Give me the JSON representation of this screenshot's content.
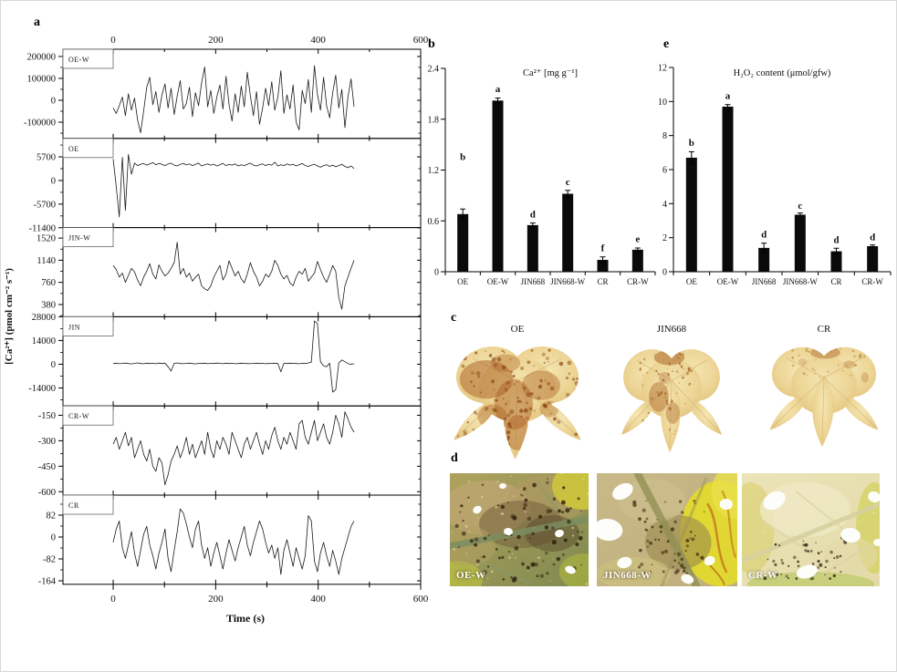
{
  "panels": {
    "a": {
      "letter": "a"
    },
    "b": {
      "letter": "b"
    },
    "c": {
      "letter": "c",
      "items": [
        {
          "name": "OE",
          "dots": {
            "count": 130,
            "seed": 11,
            "x": [
              18,
              185
            ],
            "y": [
              18,
              150
            ],
            "r": [
              1,
              3.2
            ],
            "color": "#8a4614",
            "opacity": [
              0.35,
              0.75
            ]
          },
          "blotches": [
            [
              58,
              58,
              36,
              26,
              0.5
            ],
            [
              95,
              92,
              26,
              34,
              0.45
            ],
            [
              132,
              66,
              26,
              20,
              0.4
            ],
            [
              100,
              130,
              16,
              24,
              0.45
            ],
            [
              66,
              108,
              20,
              16,
              0.38
            ],
            [
              143,
              98,
              13,
              11,
              0.32
            ],
            [
              84,
              36,
              20,
              12,
              0.35
            ]
          ]
        },
        {
          "name": "JIN668",
          "dots": {
            "count": 65,
            "seed": 23,
            "x": [
              45,
              135
            ],
            "y": [
              20,
              140
            ],
            "r": [
              0.8,
              2.6
            ],
            "color": "#96510f",
            "opacity": [
              0.3,
              0.65
            ]
          },
          "blotches": [
            [
              96,
              26,
              26,
              11,
              0.5
            ],
            [
              78,
              84,
              17,
              22,
              0.42
            ],
            [
              102,
              108,
              12,
              16,
              0.38
            ],
            [
              88,
              56,
              10,
              9,
              0.3
            ],
            [
              120,
              128,
              8,
              10,
              0.3
            ]
          ]
        },
        {
          "name": "CR",
          "dots": {
            "count": 30,
            "seed": 5,
            "x": [
              40,
              170
            ],
            "y": [
              15,
              60
            ],
            "r": [
              0.8,
              2.2
            ],
            "color": "#9a5a16",
            "opacity": [
              0.25,
              0.55
            ]
          },
          "blotches": [
            [
              102,
              22,
              24,
              9,
              0.42
            ],
            [
              140,
              40,
              9,
              6,
              0.3
            ],
            [
              66,
              36,
              7,
              5,
              0.22
            ],
            [
              165,
              60,
              6,
              8,
              0.25
            ]
          ]
        }
      ]
    },
    "d": {
      "letter": "d",
      "items": [
        {
          "name": "OE-W",
          "holes": [
            [
              30,
              40,
              5,
              4
            ],
            [
              64,
              64,
              5,
              4
            ],
            [
              120,
              66,
              5,
              4
            ],
            [
              132,
              106,
              6,
              4
            ],
            [
              58,
              14,
              4,
              3
            ]
          ],
          "dots": {
            "count": 85,
            "seed": 3,
            "x": [
              6,
              146
            ],
            "y": [
              6,
              118
            ],
            "r": [
              0.8,
              2.6
            ],
            "color": "#33230f",
            "opacity": [
              0.5,
              0.9
            ]
          }
        },
        {
          "name": "JIN668-W",
          "holes": [
            [
              28,
              20,
              12,
              8
            ],
            [
              12,
              62,
              16,
              12
            ],
            [
              30,
              98,
              8,
              6
            ],
            [
              98,
              116,
              7,
              5
            ],
            [
              140,
              34,
              7,
              6
            ],
            [
              122,
              96,
              6,
              5
            ]
          ],
          "dots": {
            "count": 60,
            "seed": 7,
            "x": [
              40,
              120
            ],
            "y": [
              30,
              110
            ],
            "r": [
              0.7,
              2.2
            ],
            "color": "#4a3618",
            "opacity": [
              0.5,
              0.85
            ]
          }
        },
        {
          "name": "CR-W",
          "holes": [
            [
              36,
              30,
              13,
              9
            ],
            [
              120,
              68,
              11,
              8
            ],
            [
              72,
              108,
              12,
              7
            ],
            [
              146,
              26,
              7,
              6
            ],
            [
              150,
              76,
              5,
              4
            ]
          ],
          "dots": {
            "count": 48,
            "seed": 9,
            "x": [
              25,
              118
            ],
            "y": [
              70,
              118
            ],
            "r": [
              0.7,
              2.0
            ],
            "color": "#2e2a14",
            "opacity": [
              0.5,
              0.85
            ]
          }
        }
      ]
    },
    "e": {
      "letter": "e"
    }
  },
  "chart_data": [
    {
      "id": "a",
      "type": "line",
      "xlabel": "Time (s)",
      "ylabel": "[Ca²⁺] (pmol cm⁻² s⁻¹)",
      "x_ticks": [
        0,
        200,
        400,
        600
      ],
      "x_minor_ticks": [
        100,
        300,
        500
      ],
      "x_range": [
        -98,
        600
      ],
      "t_end": 470,
      "grid": false,
      "subplots": [
        {
          "label": "OE-W",
          "y_ticks": [
            200000,
            100000,
            0,
            -100000
          ],
          "y_range": [
            -174000,
            233000
          ],
          "values": [
            -35000,
            -60000,
            -25000,
            15000,
            -70000,
            30000,
            -45000,
            10000,
            -90000,
            -148000,
            -50000,
            60000,
            105000,
            -20000,
            40000,
            -55000,
            25000,
            75000,
            -35000,
            55000,
            -65000,
            20000,
            90000,
            -40000,
            -15000,
            60000,
            -75000,
            35000,
            -25000,
            80000,
            152000,
            -30000,
            45000,
            -60000,
            15000,
            70000,
            -40000,
            110000,
            -20000,
            -95000,
            30000,
            -55000,
            65000,
            -30000,
            128000,
            20000,
            -70000,
            40000,
            -110000,
            -35000,
            55000,
            -25000,
            85000,
            -45000,
            15000,
            135000,
            -60000,
            25000,
            -40000,
            70000,
            -100000,
            -135000,
            45000,
            -15000,
            95000,
            -55000,
            158000,
            25000,
            -45000,
            105000,
            -25000,
            -80000,
            35000,
            115000,
            -35000,
            50000,
            -125000,
            15000,
            98000,
            -30000
          ]
        },
        {
          "label": "OE",
          "y_ticks": [
            5700,
            0,
            -5700,
            -11400
          ],
          "y_range": [
            -11360,
            10150
          ],
          "values": [
            5200,
            -1500,
            -8800,
            5600,
            -7200,
            6300,
            1500,
            4200,
            3600,
            3900,
            4100,
            3700,
            4000,
            4300,
            3800,
            4100,
            3900,
            3600,
            4000,
            4200,
            3700,
            3500,
            3900,
            4100,
            3800,
            4000,
            3600,
            3900,
            4200,
            3500,
            3800,
            4000,
            3700,
            3900,
            3500,
            3800,
            4100,
            3600,
            3900,
            3700,
            4000,
            3500,
            3800,
            3600,
            3900,
            4200,
            3700,
            3500,
            3800,
            4000,
            3600,
            3900,
            3700,
            4400,
            3500,
            3800,
            3600,
            4000,
            3700,
            3900,
            3500,
            3800,
            4100,
            3600,
            3400,
            3700,
            3900,
            3500,
            3200,
            3600,
            3800,
            3400,
            3700,
            3300,
            3600,
            3900,
            3400,
            3100,
            3500,
            2900
          ]
        },
        {
          "label": "JIN-W",
          "y_ticks": [
            1520,
            1140,
            760,
            380
          ],
          "y_range": [
            170,
            1700
          ],
          "values": [
            1050,
            980,
            850,
            920,
            760,
            880,
            1000,
            940,
            800,
            700,
            850,
            950,
            1080,
            900,
            820,
            1060,
            950,
            870,
            920,
            1000,
            1100,
            1450,
            900,
            1000,
            850,
            920,
            780,
            850,
            900,
            700,
            650,
            620,
            700,
            850,
            950,
            1050,
            800,
            900,
            1130,
            1000,
            870,
            950,
            820,
            750,
            900,
            1100,
            950,
            850,
            700,
            780,
            900,
            850,
            950,
            1140,
            1050,
            900,
            820,
            880,
            750,
            700,
            850,
            950,
            900,
            1000,
            780,
            850,
            920,
            1120,
            980,
            850,
            760,
            900,
            1050,
            950,
            500,
            300,
            700,
            850,
            1000,
            1140
          ]
        },
        {
          "label": "JIN",
          "y_ticks": [
            28000,
            14000,
            0,
            -14000
          ],
          "y_range": [
            -24600,
            28000
          ],
          "values": [
            400,
            600,
            300,
            500,
            700,
            400,
            200,
            500,
            800,
            400,
            300,
            600,
            400,
            500,
            300,
            700,
            400,
            600,
            -1500,
            -4000,
            500,
            800,
            400,
            300,
            500,
            600,
            400,
            200,
            500,
            400,
            600,
            300,
            500,
            400,
            700,
            500,
            300,
            600,
            400,
            500,
            300,
            400,
            600,
            500,
            400,
            300,
            500,
            600,
            400,
            500,
            300,
            400,
            500,
            600,
            400,
            -4500,
            500,
            400,
            600,
            500,
            400,
            300,
            500,
            400,
            800,
            1200,
            25500,
            24000,
            1500,
            -1000,
            -1500,
            600,
            -16500,
            -15000,
            800,
            2500,
            1500,
            400,
            -200,
            300
          ]
        },
        {
          "label": "CR-W",
          "y_ticks": [
            -150,
            -300,
            -450,
            -600
          ],
          "y_range": [
            -620,
            -95
          ],
          "values": [
            -320,
            -280,
            -350,
            -300,
            -250,
            -330,
            -280,
            -400,
            -350,
            -300,
            -380,
            -420,
            -350,
            -450,
            -480,
            -400,
            -430,
            -560,
            -500,
            -420,
            -380,
            -330,
            -400,
            -350,
            -280,
            -380,
            -320,
            -400,
            -350,
            -300,
            -380,
            -250,
            -350,
            -400,
            -300,
            -350,
            -280,
            -320,
            -380,
            -250,
            -300,
            -350,
            -400,
            -320,
            -280,
            -350,
            -300,
            -250,
            -320,
            -380,
            -300,
            -350,
            -270,
            -220,
            -300,
            -350,
            -280,
            -320,
            -250,
            -300,
            -350,
            -200,
            -180,
            -280,
            -320,
            -250,
            -180,
            -300,
            -250,
            -200,
            -280,
            -320,
            -250,
            -150,
            -200,
            -280,
            -130,
            -170,
            -220,
            -250
          ]
        },
        {
          "label": "CR",
          "y_ticks": [
            82,
            0,
            -82,
            -164
          ],
          "y_range": [
            -177,
            157
          ],
          "values": [
            -20,
            30,
            60,
            -40,
            -80,
            -30,
            20,
            -60,
            -110,
            -50,
            10,
            40,
            -30,
            -70,
            -120,
            -60,
            -20,
            30,
            -80,
            -130,
            -50,
            20,
            105,
            90,
            50,
            0,
            -40,
            30,
            60,
            -30,
            -80,
            -40,
            -110,
            -60,
            -20,
            -70,
            -120,
            -60,
            -10,
            -50,
            -90,
            -40,
            0,
            40,
            -30,
            -70,
            -20,
            20,
            60,
            30,
            -20,
            -60,
            -30,
            -80,
            -40,
            -140,
            -50,
            -10,
            -60,
            -110,
            -40,
            -80,
            -120,
            -70,
            80,
            60,
            -90,
            -130,
            -60,
            -20,
            -70,
            -110,
            -50,
            -90,
            -140,
            -80,
            -40,
            0,
            40,
            60
          ]
        }
      ]
    },
    {
      "id": "b",
      "type": "bar",
      "title": "Ca²⁺ [mg g⁻¹]",
      "categories": [
        "OE",
        "OE-W",
        "JIN668",
        "JIN668-W",
        "CR",
        "CR-W"
      ],
      "values": [
        0.68,
        2.02,
        0.55,
        0.92,
        0.14,
        0.26
      ],
      "errors": [
        0.06,
        0.03,
        0.025,
        0.04,
        0.035,
        0.02
      ],
      "sig_letters": [
        "b",
        "a",
        "d",
        "c",
        "f",
        "e"
      ],
      "letter_y": [
        1.32,
        2.12,
        0.64,
        1.02,
        0.24,
        0.35
      ],
      "y_ticks": [
        0,
        0.6,
        1.2,
        1.8,
        2.4
      ],
      "ylim": [
        0,
        2.4
      ],
      "bar_color": "#0a0a0a"
    },
    {
      "id": "e",
      "type": "bar",
      "title": "H₂O₂ content (μmol/gfw)",
      "categories": [
        "OE",
        "OE-W",
        "JIN668",
        "JIN668-W",
        "CR",
        "CR-W"
      ],
      "values": [
        6.7,
        9.7,
        1.4,
        3.35,
        1.2,
        1.5
      ],
      "errors": [
        0.35,
        0.12,
        0.28,
        0.1,
        0.18,
        0.07
      ],
      "sig_letters": [
        "b",
        "a",
        "d",
        "c",
        "d",
        "d"
      ],
      "letter_y": [
        7.4,
        10.15,
        2.0,
        3.7,
        1.7,
        1.85
      ],
      "y_ticks": [
        0,
        2,
        4,
        6,
        8,
        10,
        12
      ],
      "ylim": [
        0,
        12
      ],
      "bar_color": "#0a0a0a"
    }
  ]
}
